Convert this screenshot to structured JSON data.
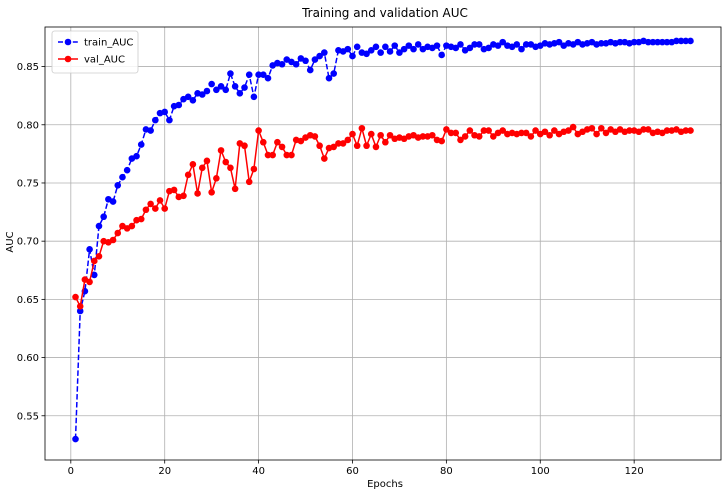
{
  "chart_data": {
    "type": "line",
    "title": "Training and validation AUC",
    "xlabel": "Epochs",
    "ylabel": "AUC",
    "xlim": [
      -5.5,
      138.5
    ],
    "ylim": [
      0.512,
      0.884
    ],
    "xticks": [
      0,
      20,
      40,
      60,
      80,
      100,
      120
    ],
    "yticks": [
      0.55,
      0.6,
      0.65,
      0.7,
      0.75,
      0.8,
      0.85
    ],
    "ytick_labels": [
      "0.55",
      "0.60",
      "0.65",
      "0.70",
      "0.75",
      "0.80",
      "0.85"
    ],
    "grid": true,
    "legend": "upper-left",
    "series": [
      {
        "name": "train_AUC",
        "color": "#0000ff",
        "linestyle": "dashed",
        "marker": "circle",
        "values": [
          0.53,
          0.64,
          0.657,
          0.693,
          0.671,
          0.713,
          0.721,
          0.736,
          0.734,
          0.748,
          0.755,
          0.761,
          0.771,
          0.773,
          0.783,
          0.796,
          0.795,
          0.804,
          0.81,
          0.811,
          0.804,
          0.816,
          0.817,
          0.822,
          0.824,
          0.821,
          0.827,
          0.826,
          0.829,
          0.835,
          0.83,
          0.833,
          0.83,
          0.844,
          0.833,
          0.827,
          0.832,
          0.843,
          0.824,
          0.843,
          0.843,
          0.84,
          0.851,
          0.853,
          0.852,
          0.856,
          0.854,
          0.852,
          0.857,
          0.855,
          0.847,
          0.856,
          0.859,
          0.862,
          0.84,
          0.844,
          0.864,
          0.863,
          0.865,
          0.859,
          0.867,
          0.862,
          0.861,
          0.864,
          0.867,
          0.862,
          0.867,
          0.863,
          0.868,
          0.862,
          0.865,
          0.868,
          0.865,
          0.869,
          0.865,
          0.867,
          0.866,
          0.868,
          0.86,
          0.868,
          0.867,
          0.866,
          0.869,
          0.864,
          0.866,
          0.869,
          0.869,
          0.865,
          0.866,
          0.869,
          0.868,
          0.871,
          0.868,
          0.867,
          0.869,
          0.865,
          0.869,
          0.869,
          0.867,
          0.868,
          0.87,
          0.869,
          0.87,
          0.871,
          0.868,
          0.87,
          0.869,
          0.871,
          0.869,
          0.87,
          0.871,
          0.869,
          0.87,
          0.87,
          0.871,
          0.87,
          0.871,
          0.871,
          0.87,
          0.871,
          0.871,
          0.872,
          0.871,
          0.871,
          0.871,
          0.871,
          0.871,
          0.871,
          0.872,
          0.872,
          0.872,
          0.872
        ]
      },
      {
        "name": "val_AUC",
        "color": "#ff0000",
        "linestyle": "solid",
        "marker": "circle",
        "values": [
          0.652,
          0.644,
          0.667,
          0.665,
          0.683,
          0.687,
          0.7,
          0.699,
          0.701,
          0.707,
          0.713,
          0.711,
          0.713,
          0.718,
          0.719,
          0.727,
          0.732,
          0.728,
          0.735,
          0.728,
          0.743,
          0.744,
          0.738,
          0.739,
          0.757,
          0.766,
          0.741,
          0.763,
          0.769,
          0.742,
          0.754,
          0.778,
          0.768,
          0.763,
          0.745,
          0.784,
          0.782,
          0.751,
          0.762,
          0.795,
          0.785,
          0.774,
          0.774,
          0.785,
          0.781,
          0.774,
          0.774,
          0.787,
          0.786,
          0.789,
          0.791,
          0.79,
          0.782,
          0.771,
          0.78,
          0.781,
          0.784,
          0.784,
          0.787,
          0.792,
          0.782,
          0.797,
          0.782,
          0.792,
          0.781,
          0.791,
          0.785,
          0.791,
          0.788,
          0.789,
          0.788,
          0.79,
          0.791,
          0.789,
          0.79,
          0.79,
          0.791,
          0.787,
          0.786,
          0.796,
          0.793,
          0.793,
          0.787,
          0.79,
          0.795,
          0.791,
          0.79,
          0.795,
          0.795,
          0.79,
          0.793,
          0.795,
          0.792,
          0.793,
          0.792,
          0.793,
          0.793,
          0.79,
          0.795,
          0.792,
          0.794,
          0.791,
          0.795,
          0.792,
          0.794,
          0.795,
          0.798,
          0.792,
          0.794,
          0.796,
          0.797,
          0.792,
          0.797,
          0.793,
          0.796,
          0.794,
          0.796,
          0.794,
          0.795,
          0.795,
          0.794,
          0.796,
          0.796,
          0.793,
          0.794,
          0.793,
          0.795,
          0.795,
          0.796,
          0.794,
          0.795,
          0.795
        ]
      }
    ]
  }
}
